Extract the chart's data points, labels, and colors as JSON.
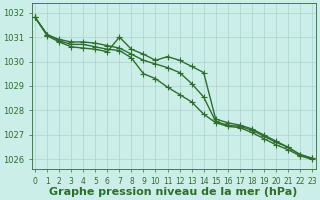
{
  "xlabel": "Graphe pression niveau de la mer (hPa)",
  "background_color": "#cceee8",
  "grid_color": "#aad4ce",
  "line_color": "#2d6e2d",
  "hours": [
    0,
    1,
    2,
    3,
    4,
    5,
    6,
    7,
    8,
    9,
    10,
    11,
    12,
    13,
    14,
    15,
    16,
    17,
    18,
    19,
    20,
    21,
    22,
    23
  ],
  "series": [
    [
      1031.8,
      1031.1,
      1030.9,
      1030.8,
      1030.8,
      1030.75,
      1030.65,
      1030.55,
      1030.3,
      1030.05,
      1029.9,
      1029.75,
      1029.55,
      1029.1,
      1028.55,
      1027.55,
      1027.4,
      1027.35,
      1027.2,
      1026.95,
      1026.7,
      1026.5,
      1026.2,
      1026.05
    ],
    [
      1031.8,
      1031.1,
      1030.85,
      1030.7,
      1030.7,
      1030.6,
      1030.5,
      1030.45,
      1030.15,
      1029.5,
      1029.3,
      1028.95,
      1028.65,
      1028.35,
      1027.85,
      1027.5,
      1027.35,
      1027.3,
      1027.1,
      1026.85,
      1026.6,
      1026.4,
      1026.15,
      1026.0
    ],
    [
      1031.8,
      1031.05,
      1030.8,
      1030.6,
      1030.55,
      1030.5,
      1030.4,
      1031.0,
      1030.5,
      1030.3,
      1030.05,
      1030.2,
      1030.05,
      1029.8,
      1029.55,
      1027.65,
      1027.5,
      1027.4,
      1027.25,
      1027.0,
      1026.75,
      1026.5,
      1026.2,
      1026.05
    ]
  ],
  "ylim": [
    1025.6,
    1032.4
  ],
  "yticks": [
    1026,
    1027,
    1028,
    1029,
    1030,
    1031,
    1032
  ],
  "marker": "+",
  "markersize": 4,
  "linewidth": 1.0,
  "xlabel_fontsize": 8,
  "tick_fontsize": 6,
  "xtick_fontsize": 5.5,
  "figsize": [
    3.2,
    2.0
  ],
  "dpi": 100
}
